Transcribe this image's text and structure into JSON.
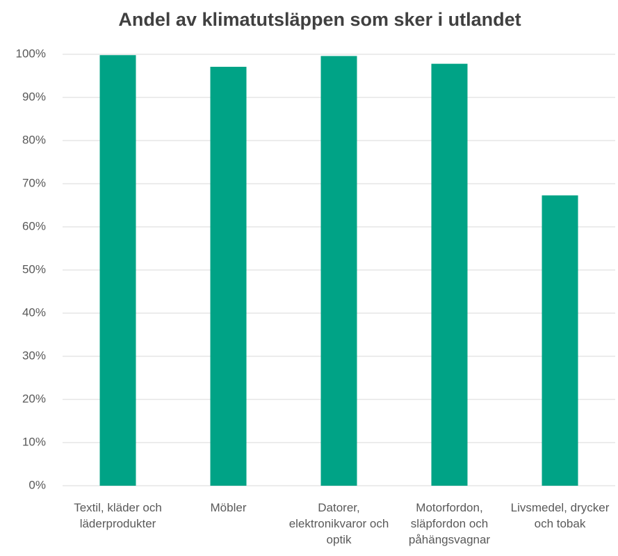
{
  "chart_data": {
    "type": "bar",
    "title": "Andel av klimatutsläppen som sker i utlandet",
    "categories": [
      "Textil, kläder och läderprodukter",
      "Möbler",
      "Datorer, elektronikvaror och optik",
      "Motorfordon, släpfordon och påhängsvagnar",
      "Livsmedel, drycker och tobak"
    ],
    "values": [
      99.8,
      97.1,
      99.6,
      97.8,
      67.3
    ],
    "color": "#00a386",
    "ylim": [
      0,
      100
    ],
    "yticks": [
      {
        "value": 0,
        "label": "0%"
      },
      {
        "value": 10,
        "label": "10%"
      },
      {
        "value": 20,
        "label": "20%"
      },
      {
        "value": 30,
        "label": "30%"
      },
      {
        "value": 40,
        "label": "40%"
      },
      {
        "value": 50,
        "label": "50%"
      },
      {
        "value": 60,
        "label": "60%"
      },
      {
        "value": 70,
        "label": "70%"
      },
      {
        "value": 80,
        "label": "80%"
      },
      {
        "value": 90,
        "label": "90%"
      },
      {
        "value": 100,
        "label": "100%"
      }
    ],
    "grid": true
  }
}
